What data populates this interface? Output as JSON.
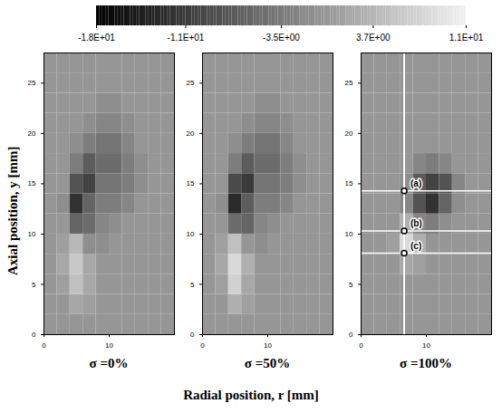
{
  "chart_data": {
    "type": "heatmap",
    "xlabel": "Radial position, r [mm]",
    "ylabel": "Axial position, y [mm]",
    "xlim": [
      0,
      20
    ],
    "xticks": [
      0,
      10
    ],
    "ylim": [
      0,
      28
    ],
    "yticks": [
      0,
      5,
      10,
      15,
      20,
      25
    ],
    "colorbar": {
      "range": [
        -18,
        11
      ],
      "ticks": [
        {
          "value": -18,
          "label": "-1.8E+01"
        },
        {
          "value": -11,
          "label": "-1.1E+01"
        },
        {
          "value": -3.5,
          "label": "-3.5E+00"
        },
        {
          "value": 3.7,
          "label": "3.7E+00"
        },
        {
          "value": 11,
          "label": "1.1E+01"
        }
      ]
    },
    "panels": [
      {
        "title": "σ =0%",
        "r": [
          1,
          3,
          5,
          7,
          9,
          11,
          13,
          15,
          17,
          19
        ],
        "y": [
          1,
          3,
          5,
          7,
          9,
          11,
          13,
          15,
          17,
          19,
          21,
          23,
          25,
          27
        ],
        "values": [
          [
            0,
            0,
            0,
            0,
            0,
            0,
            0,
            0,
            0,
            0
          ],
          [
            0,
            0,
            2,
            1,
            0,
            0,
            0,
            0,
            0,
            0
          ],
          [
            0,
            1,
            5,
            2,
            0,
            0,
            0,
            0,
            0,
            0
          ],
          [
            0,
            2,
            6,
            2,
            0,
            0,
            0,
            0,
            0,
            0
          ],
          [
            0,
            1,
            4,
            -1,
            -1,
            0,
            0,
            0,
            0,
            0
          ],
          [
            0,
            0,
            -6,
            -5,
            -2,
            -1,
            0,
            0,
            0,
            0
          ],
          [
            0,
            -1,
            -12,
            -6,
            -3,
            -3,
            -2,
            0,
            0,
            0
          ],
          [
            0,
            0,
            -8,
            -10,
            -4,
            -4,
            -3,
            -1,
            0,
            0
          ],
          [
            0,
            0,
            -3,
            -7,
            -5,
            -5,
            -3,
            -1,
            0,
            0
          ],
          [
            0,
            0,
            -1,
            -3,
            -4,
            -4,
            -2,
            0,
            0,
            0
          ],
          [
            0,
            0,
            0,
            -1,
            -2,
            -2,
            -1,
            0,
            0,
            0
          ],
          [
            0,
            0,
            0,
            0,
            -1,
            -1,
            0,
            0,
            0,
            0
          ],
          [
            0,
            0,
            0,
            0,
            0,
            0,
            0,
            0,
            0,
            0
          ],
          [
            0,
            0,
            0,
            0,
            0,
            0,
            0,
            0,
            0,
            0
          ]
        ]
      },
      {
        "title": "σ =50%",
        "r": [
          1,
          3,
          5,
          7,
          9,
          11,
          13,
          15,
          17,
          19
        ],
        "y": [
          1,
          3,
          5,
          7,
          9,
          11,
          13,
          15,
          17,
          19,
          21,
          23,
          25,
          27
        ],
        "values": [
          [
            0,
            0,
            0,
            0,
            0,
            0,
            0,
            0,
            0,
            0
          ],
          [
            0,
            0,
            3,
            1,
            0,
            0,
            0,
            0,
            0,
            0
          ],
          [
            0,
            1,
            7,
            2,
            0,
            0,
            0,
            0,
            0,
            0
          ],
          [
            0,
            2,
            8,
            3,
            0,
            0,
            0,
            0,
            0,
            0
          ],
          [
            0,
            1,
            5,
            0,
            -1,
            0,
            0,
            0,
            0,
            0
          ],
          [
            0,
            0,
            -5,
            -6,
            -2,
            -1,
            0,
            0,
            0,
            0
          ],
          [
            0,
            -1,
            -13,
            -7,
            -3,
            -3,
            -2,
            0,
            0,
            0
          ],
          [
            0,
            0,
            -9,
            -11,
            -4,
            -4,
            -3,
            -1,
            0,
            0
          ],
          [
            0,
            0,
            -3,
            -7,
            -5,
            -5,
            -3,
            -1,
            0,
            0
          ],
          [
            0,
            0,
            -1,
            -3,
            -4,
            -4,
            -2,
            0,
            0,
            0
          ],
          [
            0,
            0,
            0,
            -1,
            -2,
            -2,
            -1,
            0,
            0,
            0
          ],
          [
            0,
            0,
            0,
            0,
            -1,
            -1,
            0,
            0,
            0,
            0
          ],
          [
            0,
            0,
            0,
            0,
            0,
            0,
            0,
            0,
            0,
            0
          ],
          [
            0,
            0,
            0,
            0,
            0,
            0,
            0,
            0,
            0,
            0
          ]
        ]
      },
      {
        "title": "σ =100%",
        "r": [
          1,
          3,
          5,
          7,
          9,
          11,
          13,
          15,
          17,
          19
        ],
        "y": [
          1,
          3,
          5,
          7,
          9,
          11,
          13,
          15,
          17,
          19,
          21,
          23,
          25,
          27
        ],
        "values": [
          [
            0,
            0,
            0,
            0,
            0,
            0,
            0,
            0,
            0,
            0
          ],
          [
            0,
            0,
            0,
            0,
            0,
            0,
            0,
            0,
            0,
            0
          ],
          [
            0,
            0,
            0,
            0,
            0,
            0,
            0,
            0,
            0,
            0
          ],
          [
            0,
            0,
            0,
            2,
            1,
            0,
            0,
            0,
            0,
            0
          ],
          [
            0,
            0,
            1,
            8,
            3,
            0,
            0,
            0,
            0,
            0
          ],
          [
            0,
            0,
            0,
            3,
            -2,
            -3,
            -1,
            0,
            0,
            0
          ],
          [
            0,
            0,
            0,
            -2,
            -8,
            -12,
            -6,
            -1,
            0,
            0
          ],
          [
            0,
            0,
            0,
            -1,
            -7,
            -10,
            -8,
            -2,
            0,
            0
          ],
          [
            0,
            0,
            0,
            0,
            -2,
            -3,
            -2,
            0,
            0,
            0
          ],
          [
            0,
            0,
            0,
            0,
            0,
            0,
            0,
            0,
            0,
            0
          ],
          [
            0,
            0,
            0,
            0,
            0,
            0,
            0,
            0,
            0,
            0
          ],
          [
            0,
            0,
            0,
            0,
            0,
            0,
            0,
            0,
            0,
            0
          ],
          [
            0,
            0,
            0,
            0,
            0,
            0,
            0,
            0,
            0,
            0
          ],
          [
            0,
            0,
            0,
            0,
            0,
            0,
            0,
            0,
            0,
            0
          ]
        ],
        "markers": [
          {
            "label": "(a)",
            "r": 6.6,
            "y": 14.3
          },
          {
            "label": "(b)",
            "r": 6.6,
            "y": 10.3
          },
          {
            "label": "(c)",
            "r": 6.6,
            "y": 8.1
          }
        ]
      }
    ]
  }
}
